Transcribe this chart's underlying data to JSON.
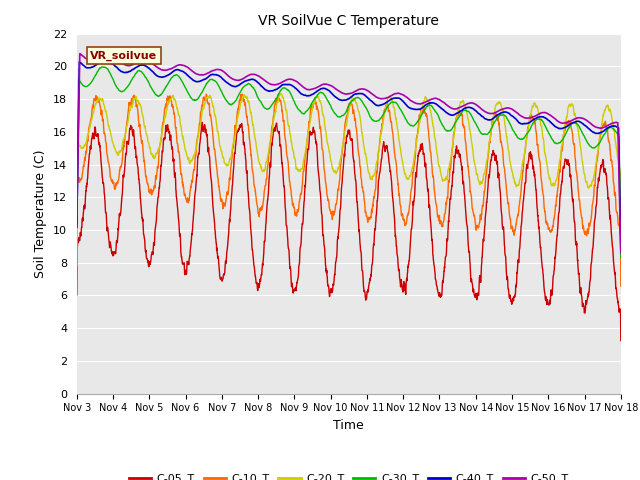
{
  "title": "VR SoilVue C Temperature",
  "xlabel": "Time",
  "ylabel": "Soil Temperature (C)",
  "ylim": [
    0,
    22
  ],
  "yticks": [
    0,
    2,
    4,
    6,
    8,
    10,
    12,
    14,
    16,
    18,
    20,
    22
  ],
  "x_labels": [
    "Nov 3",
    "Nov 4",
    "Nov 5",
    "Nov 6",
    "Nov 7",
    "Nov 8",
    "Nov 9",
    "Nov 10",
    "Nov 11",
    "Nov 12",
    "Nov 13",
    "Nov 14",
    "Nov 15",
    "Nov 16",
    "Nov 17",
    "Nov 18"
  ],
  "annotation_text": "VR_soilvue",
  "line_colors": {
    "C-05_T": "#cc0000",
    "C-10_T": "#ff6600",
    "C-20_T": "#cccc00",
    "C-30_T": "#00bb00",
    "C-40_T": "#0000cc",
    "C-50_T": "#aa00aa"
  },
  "background_color": "#e8e8e8",
  "legend_colors": {
    "C-05_T": "#cc0000",
    "C-10_T": "#ff6600",
    "C-20_T": "#cccc00",
    "C-30_T": "#00bb00",
    "C-40_T": "#0000cc",
    "C-50_T": "#aa00aa"
  }
}
